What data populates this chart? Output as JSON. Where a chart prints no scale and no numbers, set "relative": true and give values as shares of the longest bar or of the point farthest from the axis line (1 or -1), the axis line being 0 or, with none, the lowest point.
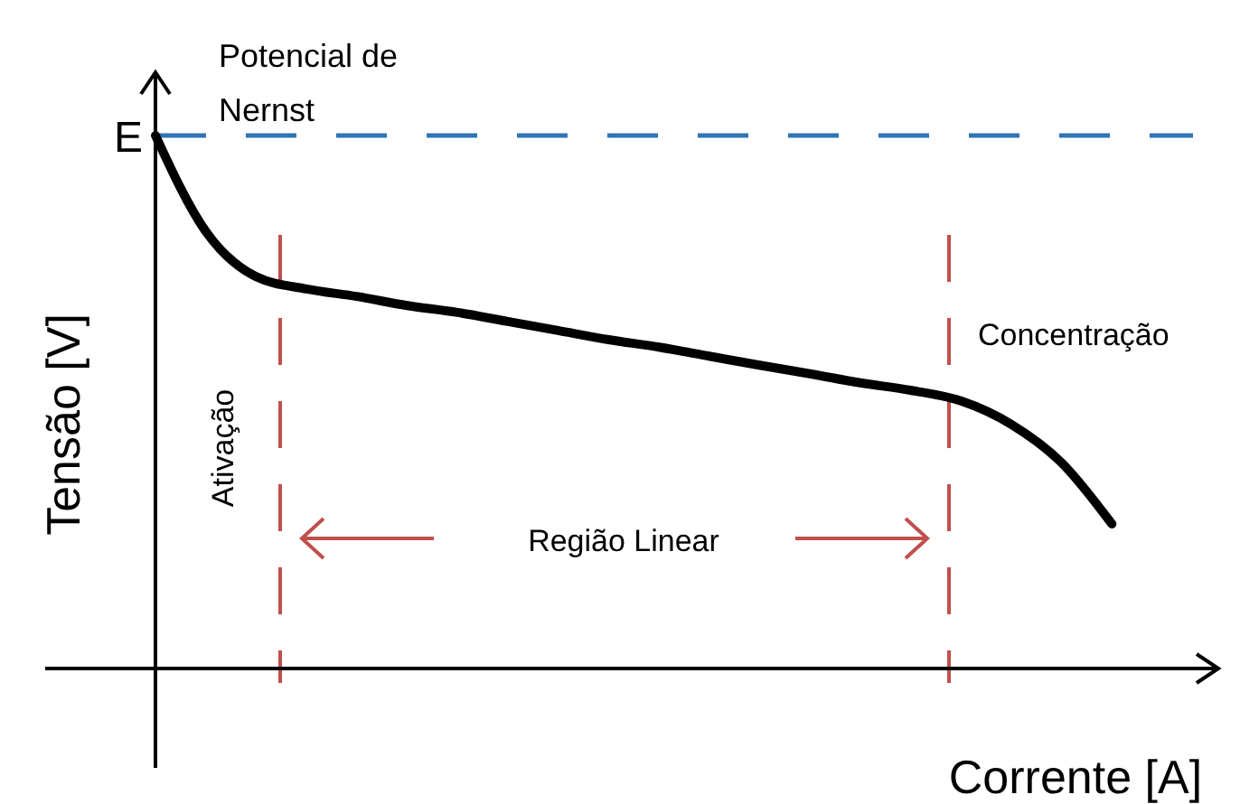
{
  "chart_data": {
    "type": "line",
    "relative": true,
    "xlabel": "Corrente [A]",
    "ylabel": "Tensão [V]",
    "categories": [
      null,
      null,
      null,
      null,
      null,
      null,
      null,
      null,
      null,
      null,
      null,
      null,
      null,
      null,
      null,
      null,
      null,
      null,
      null,
      null
    ],
    "series": [
      {
        "color": "#000000",
        "values": [
          1.0,
          0.82,
          0.735,
          0.712,
          0.698,
          0.681,
          0.668,
          0.651,
          0.634,
          0.617,
          0.603,
          0.586,
          0.569,
          0.553,
          0.536,
          0.522,
          0.502,
          0.458,
          0.386,
          0.271
        ]
      }
    ],
    "ref_lines": [
      {
        "axis": "y",
        "value": 1,
        "label": "Potencial de Nernst",
        "color": "#2e75b6",
        "line_style": "dashed"
      }
    ],
    "annotations": [
      "E",
      "Ativação",
      "Região Linear",
      "Concentração"
    ],
    "marker": "none",
    "line_style": "solid"
  }
}
